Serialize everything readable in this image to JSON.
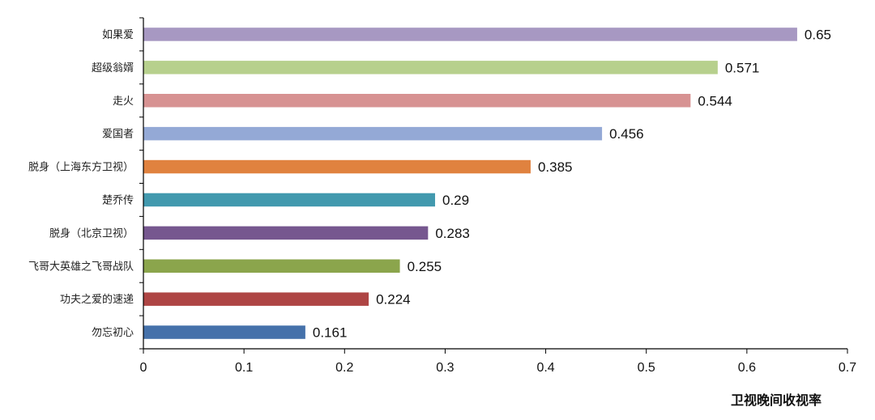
{
  "chart_data": {
    "type": "bar",
    "orientation": "horizontal",
    "categories": [
      "如果爱",
      "超级翁婿",
      "走火",
      "爱国者",
      "脱身（上海东方卫视）",
      "楚乔传",
      "脱身（北京卫视）",
      "飞哥大英雄之飞哥战队",
      "功夫之爱的速递",
      "勿忘初心"
    ],
    "values": [
      0.65,
      0.571,
      0.544,
      0.456,
      0.385,
      0.29,
      0.283,
      0.255,
      0.224,
      0.161
    ],
    "value_labels": [
      "0.65",
      "0.571",
      "0.544",
      "0.456",
      "0.385",
      "0.29",
      "0.283",
      "0.255",
      "0.224",
      "0.161"
    ],
    "colors": [
      "#A798C2",
      "#B7D08D",
      "#D79292",
      "#94A9D6",
      "#E0823F",
      "#4299AE",
      "#76578F",
      "#8BA54C",
      "#AE4544",
      "#4571AA"
    ],
    "xlabel": "卫视晚间收视率",
    "xlim": [
      0,
      0.7
    ],
    "xticks": [
      "0",
      "0.1",
      "0.2",
      "0.3",
      "0.4",
      "0.5",
      "0.6",
      "0.7"
    ],
    "grid": false,
    "legend": "none"
  }
}
